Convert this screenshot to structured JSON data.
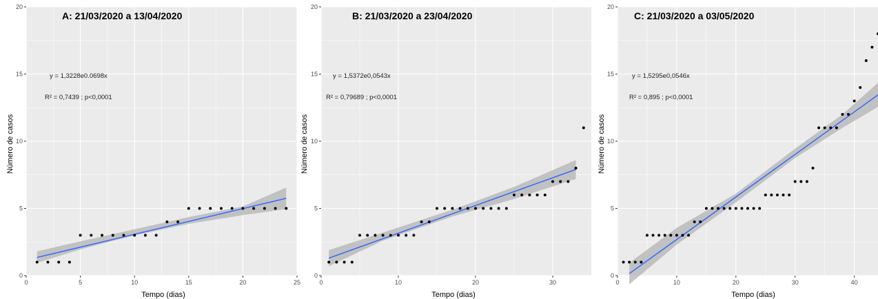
{
  "chart_data": [
    {
      "type": "scatter",
      "title": "A: 21/03/2020 a 13/04/2020",
      "xlabel": "Tempo (dias)",
      "ylabel": "Número de casos",
      "xlim": [
        0,
        25
      ],
      "ylim": [
        0,
        20
      ],
      "xticks": [
        0,
        5,
        10,
        15,
        20,
        25
      ],
      "yticks": [
        0,
        5,
        10,
        15,
        20
      ],
      "grid": true,
      "equation": "y = 1,3228e0.0698x",
      "r2": "R² = 0,7439 ; p<0,0001",
      "x": [
        1,
        2,
        3,
        4,
        5,
        6,
        7,
        8,
        9,
        10,
        11,
        12,
        13,
        14,
        15,
        16,
        17,
        18,
        19,
        20,
        21,
        22,
        23,
        24
      ],
      "y": [
        1,
        1,
        1,
        1,
        3,
        3,
        3,
        3,
        3,
        3,
        3,
        3,
        4,
        4,
        5,
        5,
        5,
        5,
        5,
        5,
        5,
        5,
        5,
        5
      ],
      "fit": {
        "x": [
          1,
          24
        ],
        "y": [
          1.35,
          5.75
        ]
      },
      "ci": {
        "x": [
          1,
          5,
          10,
          15,
          20,
          24
        ],
        "lower": [
          0.95,
          1.95,
          3.0,
          3.85,
          4.5,
          4.95
        ],
        "upper": [
          1.8,
          2.55,
          3.45,
          4.35,
          5.15,
          6.55
        ]
      },
      "colors": {
        "point": "#000000",
        "fit": "#3366ff",
        "ci": "#b3b3b3",
        "panel": "#ebebeb",
        "grid": "#ffffff"
      }
    },
    {
      "type": "scatter",
      "title": "B: 21/03/2020 a 23/04/2020",
      "xlabel": "Tempo (dias)",
      "ylabel": "Número de casos",
      "xlim": [
        0,
        35
      ],
      "ylim": [
        0,
        20
      ],
      "xticks": [
        0,
        10,
        20,
        30
      ],
      "yticks": [
        0,
        5,
        10,
        15,
        20
      ],
      "grid": true,
      "equation": "y = 1,5372e0,0543x",
      "r2": "R² = 0,79689 ; p<0,0001",
      "x": [
        1,
        2,
        3,
        4,
        5,
        6,
        7,
        8,
        9,
        10,
        11,
        12,
        13,
        14,
        15,
        16,
        17,
        18,
        19,
        20,
        21,
        22,
        23,
        24,
        25,
        26,
        27,
        28,
        29,
        30,
        31,
        32,
        33,
        34
      ],
      "y": [
        1,
        1,
        1,
        1,
        3,
        3,
        3,
        3,
        3,
        3,
        3,
        3,
        4,
        4,
        5,
        5,
        5,
        5,
        5,
        5,
        5,
        5,
        5,
        5,
        6,
        6,
        6,
        6,
        6,
        7,
        7,
        7,
        8,
        11
      ],
      "fit": {
        "x": [
          1,
          33
        ],
        "y": [
          1.3,
          7.9
        ]
      },
      "ci": {
        "x": [
          1,
          8,
          17,
          25,
          33
        ],
        "lower": [
          0.7,
          2.6,
          4.4,
          5.7,
          7.2
        ],
        "upper": [
          1.9,
          3.2,
          4.9,
          6.6,
          8.6
        ]
      },
      "colors": {
        "point": "#000000",
        "fit": "#3366ff",
        "ci": "#b3b3b3",
        "panel": "#ebebeb",
        "grid": "#ffffff"
      }
    },
    {
      "type": "scatter",
      "title": "C: 21/03/2020 a 03/05/2020",
      "xlabel": "Tempo (dias)",
      "ylabel": "Número de casos",
      "xlim": [
        0,
        44
      ],
      "ylim": [
        0,
        20
      ],
      "xticks": [
        0,
        10,
        20,
        30,
        40
      ],
      "yticks": [
        0,
        5,
        10,
        15,
        20
      ],
      "grid": true,
      "equation": "y = 1,5295e0,0546x",
      "r2": "R² = 0,895 ; p<0,0001",
      "x": [
        1,
        2,
        3,
        4,
        5,
        6,
        7,
        8,
        9,
        10,
        11,
        12,
        13,
        14,
        15,
        16,
        17,
        18,
        19,
        20,
        21,
        22,
        23,
        24,
        25,
        26,
        27,
        28,
        29,
        30,
        31,
        32,
        33,
        34,
        35,
        36,
        37,
        38,
        39,
        40,
        41,
        42,
        43,
        44
      ],
      "y": [
        1,
        1,
        1,
        1,
        3,
        3,
        3,
        3,
        3,
        3,
        3,
        3,
        4,
        4,
        5,
        5,
        5,
        5,
        5,
        5,
        5,
        5,
        5,
        5,
        6,
        6,
        6,
        6,
        6,
        7,
        7,
        7,
        8,
        11,
        11,
        11,
        11,
        12,
        12,
        13,
        14,
        16,
        17,
        18
      ],
      "fit": {
        "x": [
          2,
          44
        ],
        "y": [
          0.15,
          13.45
        ]
      },
      "ci": {
        "x": [
          2,
          10,
          20,
          30,
          38,
          44
        ],
        "lower": [
          -0.65,
          2.3,
          5.45,
          8.75,
          11.0,
          12.55
        ],
        "upper": [
          0.95,
          3.55,
          6.1,
          9.45,
          12.0,
          14.35
        ]
      },
      "colors": {
        "point": "#000000",
        "fit": "#3366ff",
        "ci": "#b3b3b3",
        "panel": "#ebebeb",
        "grid": "#ffffff"
      }
    }
  ]
}
